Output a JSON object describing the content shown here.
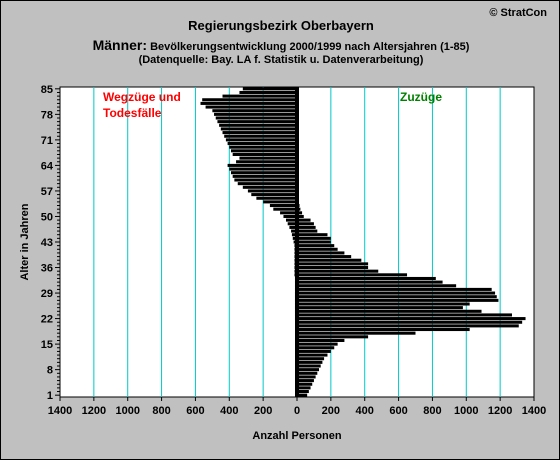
{
  "header": {
    "title": "Regierungsbezirk Oberbayern",
    "subtitle_prefix": "Männer:",
    "subtitle_rest": " Bevölkerungsentwicklung 2000/1999  nach Altersjahren (1-85)",
    "source": "(Datenquelle: Bay. LA f. Statistik u. Datenverarbeitung)",
    "copyright": "© StratCon"
  },
  "colors": {
    "background": "#c0c0c0",
    "plot_area": "#ffffff",
    "gridline": "#00c8c8",
    "bars": "#000000",
    "outflow_label": "#ff0000",
    "inflow_label": "#008000"
  },
  "chart_data": {
    "type": "bar",
    "orientation": "horizontal",
    "title": "Regierungsbezirk Oberbayern",
    "xlabel": "Anzahl Personen",
    "ylabel": "Alter in Jahren",
    "xlim": [
      -1400,
      1400
    ],
    "ylim": [
      1,
      85
    ],
    "x_ticks": [
      -1400,
      -1200,
      -1000,
      -800,
      -600,
      -400,
      -200,
      0,
      200,
      400,
      600,
      800,
      1000,
      1200,
      1400
    ],
    "x_tick_labels": [
      "1400",
      "1200",
      "1000",
      "800",
      "600",
      "400",
      "200",
      "0",
      "200",
      "400",
      "600",
      "800",
      "1000",
      "1200",
      "1400"
    ],
    "y_ticks": [
      1,
      8,
      15,
      22,
      29,
      36,
      43,
      50,
      57,
      64,
      71,
      78,
      85
    ],
    "grid": "vertical",
    "annotations": [
      {
        "text_lines": [
          "Wegzüge und",
          "Todesfälle"
        ],
        "color": "#ff0000",
        "position": "top-left"
      },
      {
        "text_lines": [
          "Zuzüge"
        ],
        "color": "#008000",
        "position": "top-right"
      }
    ],
    "series": [
      {
        "ages": [
          1,
          2,
          3,
          4,
          5,
          6,
          7,
          8,
          9,
          10,
          11,
          12,
          13,
          14,
          15,
          16,
          17,
          18,
          19,
          20,
          21,
          22,
          23,
          24,
          25,
          26,
          27,
          28,
          29,
          30,
          31,
          32,
          33,
          34,
          35,
          36,
          37,
          38,
          39,
          40,
          41,
          42,
          43,
          44,
          45,
          46,
          47,
          48,
          49,
          50,
          51,
          52,
          53,
          54,
          55,
          56,
          57,
          58,
          59,
          60,
          61,
          62,
          63,
          64,
          65,
          66,
          67,
          68,
          69,
          70,
          71,
          72,
          73,
          74,
          75,
          76,
          77,
          78,
          79,
          80,
          81,
          82,
          83,
          84,
          85
        ],
        "outflow": [
          -10,
          -8,
          -8,
          -8,
          -8,
          -8,
          -8,
          -8,
          -8,
          -8,
          -8,
          -8,
          -8,
          -8,
          -8,
          -8,
          -8,
          -10,
          -10,
          -10,
          -10,
          -12,
          -12,
          -12,
          -12,
          -12,
          -12,
          -12,
          -12,
          -12,
          -12,
          -12,
          -12,
          -15,
          -15,
          -15,
          -15,
          -15,
          -15,
          -15,
          -15,
          -15,
          -20,
          -25,
          -30,
          -35,
          -45,
          -55,
          -65,
          -80,
          -100,
          -140,
          -160,
          -200,
          -240,
          -270,
          -290,
          -320,
          -350,
          -370,
          -380,
          -390,
          -400,
          -410,
          -360,
          -340,
          -380,
          -390,
          -400,
          -410,
          -420,
          -430,
          -440,
          -450,
          -460,
          -470,
          -480,
          -490,
          -500,
          -540,
          -570,
          -560,
          -440,
          -340,
          -320
        ],
        "inflow": [
          60,
          70,
          80,
          90,
          100,
          110,
          120,
          130,
          140,
          150,
          160,
          180,
          200,
          220,
          240,
          280,
          420,
          700,
          1020,
          1310,
          1330,
          1350,
          1270,
          1090,
          980,
          1020,
          1190,
          1180,
          1170,
          1150,
          940,
          860,
          820,
          650,
          480,
          420,
          420,
          380,
          320,
          280,
          240,
          220,
          200,
          200,
          180,
          120,
          110,
          100,
          80,
          40,
          30,
          20,
          15,
          12,
          10,
          10,
          10,
          8,
          8,
          8,
          8,
          8,
          8,
          8,
          8,
          8,
          8,
          8,
          8,
          8,
          8,
          8,
          8,
          8,
          8,
          8,
          8,
          8,
          8,
          8,
          8,
          8,
          8,
          8,
          8
        ]
      }
    ]
  }
}
